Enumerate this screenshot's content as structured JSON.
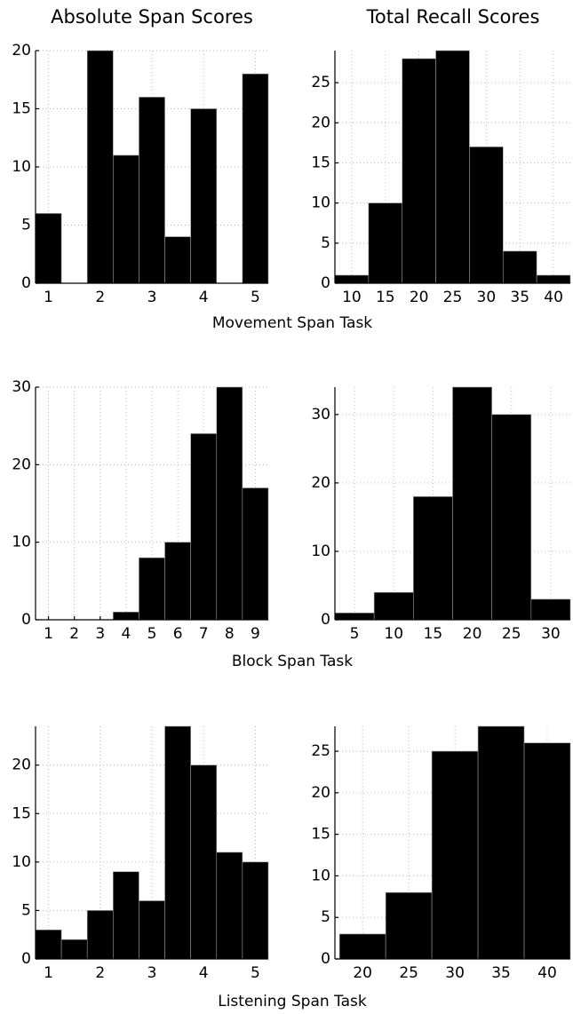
{
  "column_titles": [
    "Absolute Span Scores",
    "Total Recall Scores"
  ],
  "row_labels": [
    "Movement Span Task",
    "Block Span Task",
    "Listening Span Task"
  ],
  "chart_data": [
    {
      "type": "histogram",
      "bins": [
        0.75,
        1.25,
        1.75,
        2.25,
        2.75,
        3.25,
        3.75,
        4.25,
        4.75,
        5.25
      ],
      "values": [
        6,
        0,
        20,
        11,
        16,
        4,
        15,
        0,
        18
      ],
      "color": "#000000",
      "xlim": [
        0.75,
        5.25
      ],
      "ylim": [
        0,
        20
      ],
      "xticks": [
        1,
        2,
        3,
        4,
        5
      ],
      "yticks": [
        0,
        5,
        10,
        15,
        20
      ],
      "grid": true
    },
    {
      "type": "histogram",
      "bins": [
        7.5,
        12.5,
        17.5,
        22.5,
        27.5,
        32.5,
        37.5,
        42.5
      ],
      "values": [
        1,
        10,
        28,
        29,
        17,
        4,
        1
      ],
      "color": "#000000",
      "xlim": [
        7.5,
        42.5
      ],
      "ylim": [
        0,
        29
      ],
      "xticks": [
        10,
        15,
        20,
        25,
        30,
        35,
        40
      ],
      "yticks": [
        0,
        5,
        10,
        15,
        20,
        25
      ],
      "grid": true
    },
    {
      "type": "histogram",
      "bins": [
        0.5,
        1.5,
        2.5,
        3.5,
        4.5,
        5.5,
        6.5,
        7.5,
        8.5,
        9.5
      ],
      "values": [
        0,
        0,
        0,
        1,
        8,
        10,
        24,
        30,
        17
      ],
      "color": "#000000",
      "xlim": [
        0.5,
        9.5
      ],
      "ylim": [
        0,
        30
      ],
      "xticks": [
        1,
        2,
        3,
        4,
        5,
        6,
        7,
        8,
        9
      ],
      "yticks": [
        0,
        10,
        20,
        30
      ],
      "grid": true
    },
    {
      "type": "histogram",
      "bins": [
        2.5,
        7.5,
        12.5,
        17.5,
        22.5,
        27.5,
        32.5
      ],
      "values": [
        1,
        4,
        18,
        34,
        30,
        3
      ],
      "color": "#000000",
      "xlim": [
        2.5,
        32.5
      ],
      "ylim": [
        0,
        34
      ],
      "xticks": [
        5,
        10,
        15,
        20,
        25,
        30
      ],
      "yticks": [
        0,
        10,
        20,
        30
      ],
      "grid": true
    },
    {
      "type": "histogram",
      "bins": [
        0.75,
        1.25,
        1.75,
        2.25,
        2.75,
        3.25,
        3.75,
        4.25,
        4.75,
        5.25
      ],
      "values": [
        3,
        2,
        5,
        9,
        6,
        24,
        20,
        11,
        10
      ],
      "color": "#000000",
      "xlim": [
        0.75,
        5.25
      ],
      "ylim": [
        0,
        24
      ],
      "xticks": [
        1,
        2,
        3,
        4,
        5
      ],
      "yticks": [
        0,
        5,
        10,
        15,
        20
      ],
      "grid": true
    },
    {
      "type": "histogram",
      "bins": [
        17.5,
        22.5,
        27.5,
        32.5,
        37.5,
        42.5
      ],
      "values": [
        3,
        8,
        25,
        28,
        26
      ],
      "color": "#000000",
      "xlim": [
        17,
        42.5
      ],
      "ylim": [
        0,
        28
      ],
      "xticks": [
        20,
        25,
        30,
        35,
        40
      ],
      "yticks": [
        0,
        5,
        10,
        15,
        20,
        25
      ],
      "grid": true
    }
  ]
}
